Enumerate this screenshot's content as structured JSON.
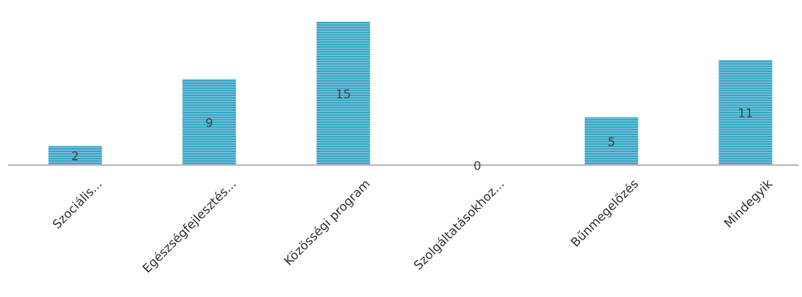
{
  "chart_data": {
    "type": "bar",
    "categories": [
      "Szociális...",
      "Egészségfejlesztés...",
      "Közösségi program",
      "Szolgáltatásokhoz...",
      "Bűnmegelőzés",
      "Mindegyik"
    ],
    "values": [
      2,
      9,
      15,
      0,
      5,
      11
    ],
    "data_labels": [
      "2",
      "9",
      "15",
      "0",
      "5",
      "11"
    ],
    "title": "",
    "xlabel": "",
    "ylabel": "",
    "ylim": [
      0,
      15
    ],
    "grid": false,
    "legend": "none",
    "colors": {
      "bar": "#3ea6c6",
      "bar_stripe": "#7cc7de",
      "axis": "#bdbdbd"
    }
  }
}
